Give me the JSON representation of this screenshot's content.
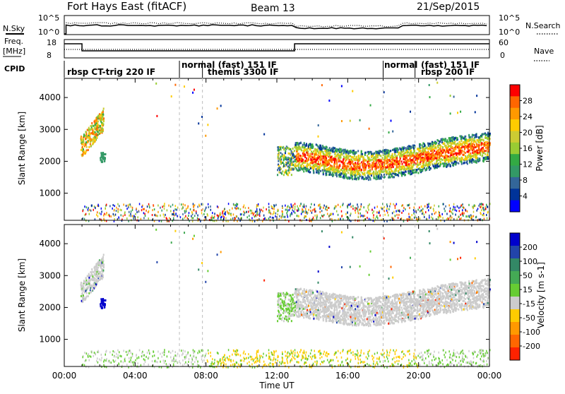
{
  "header": {
    "title": "Fort Hays East (fitACF)",
    "beam": "Beam 13",
    "date": "21/Sep/2015"
  },
  "top_panels": {
    "nsky_label": "N.Sky",
    "nsearch_label": "N.Search",
    "freq_label_line1": "Freq.",
    "freq_label_line2": "[MHz]",
    "nave_label": "Nave",
    "cpid_label": "CPID",
    "noise_ticks_left": [
      "10^5",
      "10^0"
    ],
    "noise_ticks_right": [
      "10^5",
      "10^0"
    ],
    "freq_ticks_left": [
      "18",
      "8"
    ],
    "nave_ticks_right": [
      "60",
      "0"
    ]
  },
  "modes": [
    {
      "label": "rbsp CT-trig 220 IF",
      "start": 0.0,
      "row": 1
    },
    {
      "label": "normal (fast) 151 IF",
      "start": 6.5,
      "row": 0
    },
    {
      "label": "themis 3300 IF",
      "start": 7.8,
      "row": 1
    },
    {
      "label": "normal",
      "start": 18.0,
      "row": 0
    },
    {
      "label": "(fast) 151 IF",
      "start": 19.8,
      "row": 0
    },
    {
      "label": "rbsp 200 IF",
      "start": 19.8,
      "row": 1
    }
  ],
  "chart_data": {
    "type": "heatmap",
    "xlabel": "Time UT",
    "x_ticks": [
      "00:00",
      "04:00",
      "08:00",
      "12:00",
      "16:00",
      "20:00",
      "00:00"
    ],
    "xlim_hours": [
      0,
      24
    ],
    "ylim_km": [
      150,
      4600
    ],
    "y_ticks": [
      1000,
      2000,
      3000,
      4000
    ],
    "mode_boundaries_hours": [
      6.5,
      7.8,
      18.0,
      19.8
    ],
    "panels": [
      {
        "name": "power",
        "ylabel": "Slant Range [km]",
        "colorbar_label": "Power [dB]",
        "colorbar_ticks": [
          "28",
          "24",
          "20",
          "16",
          "12",
          "8",
          "4"
        ],
        "colorbar_colors": [
          "#ff0000",
          "#ff6600",
          "#ff9900",
          "#ffcc00",
          "#cccc33",
          "#99cc33",
          "#33aa44",
          "#339966",
          "#336699",
          "#003399",
          "#0000ff"
        ]
      },
      {
        "name": "velocity",
        "ylabel": "Slant Range [km]",
        "colorbar_label": "Velocity [m s-1]",
        "colorbar_ticks": [
          "200",
          "100",
          "50",
          "15",
          "-15",
          "-50",
          "-100",
          "-200"
        ],
        "colorbar_colors": [
          "#0000cc",
          "#2244aa",
          "#338866",
          "#44aa55",
          "#66cc33",
          "#cccccc",
          "#ffcc00",
          "#ff9900",
          "#ff6600",
          "#ff2200"
        ]
      }
    ],
    "scatter_regions": [
      {
        "feature": "early_echo",
        "t_start": 0.9,
        "t_end": 2.2,
        "r_start": 2100,
        "r_end": 3600
      },
      {
        "feature": "main_echo",
        "t_start": 13.0,
        "t_end": 24.0,
        "r_start": 1600,
        "r_end": 2700
      },
      {
        "feature": "near_range_clutter",
        "t_start": 1.0,
        "t_end": 24.0,
        "r_start": 150,
        "r_end": 700
      }
    ]
  }
}
